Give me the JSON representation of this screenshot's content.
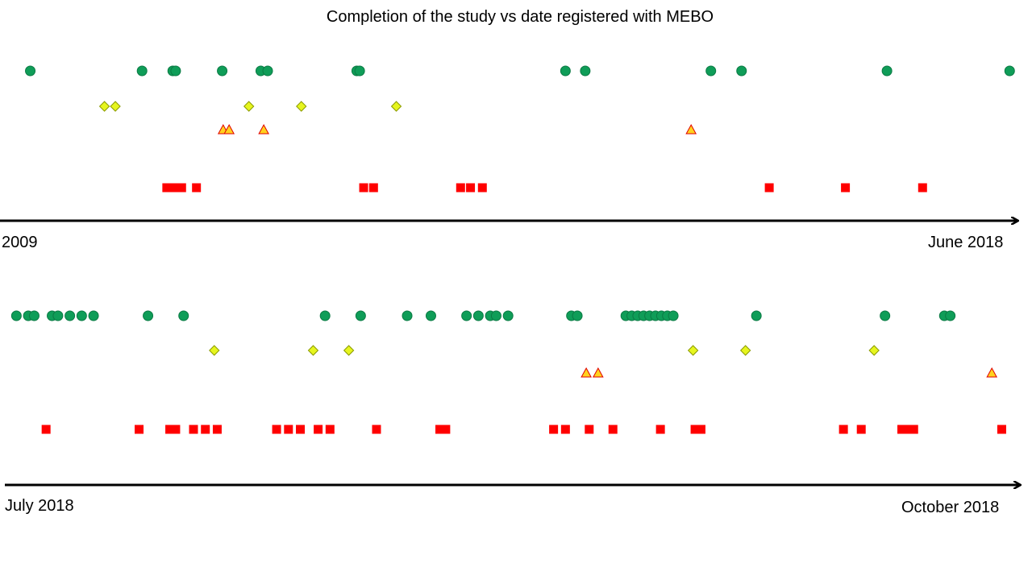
{
  "chart_data": {
    "type": "scatter",
    "title": "Completion of the study vs date registered with MEBO",
    "panels": [
      {
        "axis_start_label": "2009",
        "axis_end_label": "June 2018",
        "series": [
          {
            "marker": "circle",
            "color": "#0f9d58",
            "x": [
              0.02,
              0.133,
              0.164,
              0.167,
              0.214,
              0.253,
              0.26,
              0.35,
              0.353,
              0.561,
              0.581,
              0.708,
              0.739,
              0.886,
              1.01
            ]
          },
          {
            "marker": "diamond",
            "color": "#e6f51e",
            "x": [
              0.095,
              0.106,
              0.241,
              0.294,
              0.39
            ]
          },
          {
            "marker": "triangle",
            "color": "#ffd21e",
            "x": [
              0.215,
              0.221,
              0.256,
              0.688
            ]
          },
          {
            "marker": "square",
            "color": "#ff0000",
            "x": [
              0.158,
              0.165,
              0.173,
              0.188,
              0.357,
              0.367,
              0.455,
              0.465,
              0.477,
              0.767,
              0.844,
              0.922
            ]
          }
        ]
      },
      {
        "axis_start_label": "July 2018",
        "axis_end_label": "October 2018",
        "series": [
          {
            "marker": "circle",
            "color": "#0f9d58",
            "x": [
              0.006,
              0.018,
              0.024,
              0.042,
              0.048,
              0.06,
              0.072,
              0.084,
              0.139,
              0.175,
              0.318,
              0.354,
              0.401,
              0.425,
              0.461,
              0.473,
              0.485,
              0.491,
              0.503,
              0.567,
              0.573,
              0.622,
              0.628,
              0.634,
              0.64,
              0.646,
              0.652,
              0.658,
              0.664,
              0.67,
              0.754,
              0.884,
              0.944,
              0.95
            ]
          },
          {
            "marker": "diamond",
            "color": "#e6f51e",
            "x": [
              0.206,
              0.306,
              0.342,
              0.69,
              0.743,
              0.873
            ]
          },
          {
            "marker": "triangle",
            "color": "#ffd21e",
            "x": [
              0.582,
              0.594,
              0.992
            ]
          },
          {
            "marker": "square",
            "color": "#ff0000",
            "x": [
              0.036,
              0.13,
              0.161,
              0.167,
              0.185,
              0.197,
              0.209,
              0.269,
              0.281,
              0.293,
              0.311,
              0.323,
              0.37,
              0.434,
              0.44,
              0.549,
              0.561,
              0.585,
              0.609,
              0.657,
              0.692,
              0.698,
              0.842,
              0.86,
              0.901,
              0.907,
              0.913,
              1.002
            ]
          }
        ]
      }
    ]
  }
}
